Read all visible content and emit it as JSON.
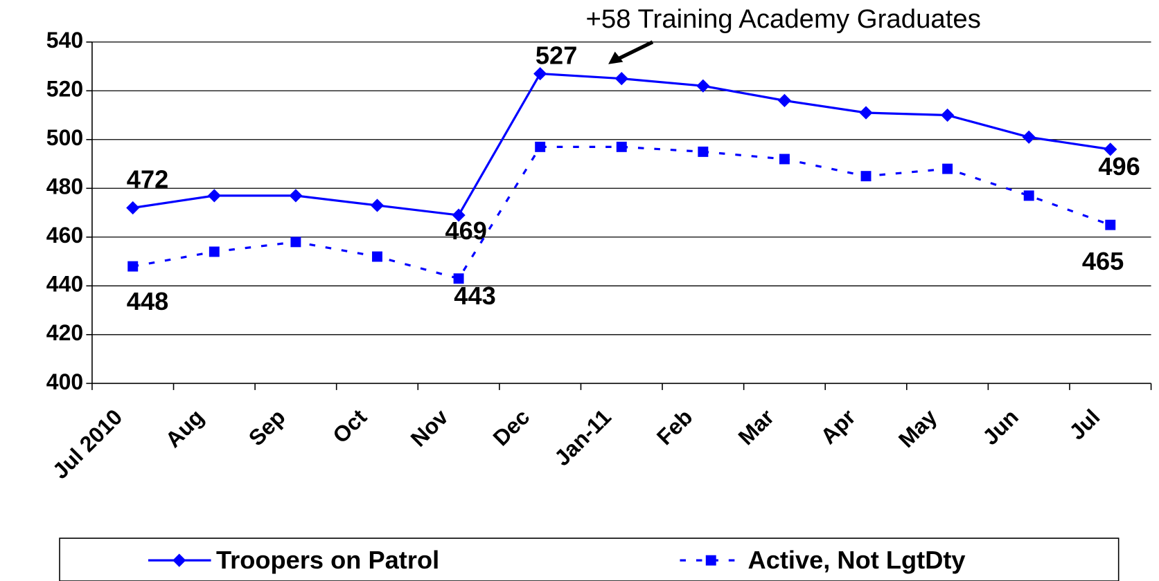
{
  "chart_data": {
    "type": "line",
    "annotation": "+58 Training Academy Graduates",
    "categories": [
      "Jul 2010",
      "Aug",
      "Sep",
      "Oct",
      "Nov",
      "Dec",
      "Jan-11",
      "Feb",
      "Mar",
      "Apr",
      "May",
      "Jun",
      "Jul"
    ],
    "series": [
      {
        "name": "Troopers on Patrol",
        "color": "#0000ff",
        "marker": "diamond",
        "dash": "solid",
        "values": [
          472,
          477,
          477,
          473,
          469,
          527,
          525,
          522,
          516,
          511,
          510,
          501,
          496
        ],
        "value_labels": [
          "472",
          null,
          null,
          null,
          "469",
          "527",
          null,
          null,
          null,
          null,
          null,
          null,
          "496"
        ]
      },
      {
        "name": "Active, Not LgtDty",
        "color": "#0000ff",
        "marker": "square",
        "dash": "dashed",
        "values": [
          448,
          454,
          458,
          452,
          443,
          497,
          497,
          495,
          492,
          485,
          488,
          477,
          465
        ],
        "value_labels": [
          "448",
          null,
          null,
          null,
          "443",
          null,
          null,
          null,
          null,
          null,
          null,
          null,
          "465"
        ]
      }
    ],
    "ylim": [
      400,
      540
    ],
    "yticks": [
      400,
      420,
      440,
      460,
      480,
      500,
      520,
      540
    ],
    "grid": true,
    "legend": "bottom"
  }
}
